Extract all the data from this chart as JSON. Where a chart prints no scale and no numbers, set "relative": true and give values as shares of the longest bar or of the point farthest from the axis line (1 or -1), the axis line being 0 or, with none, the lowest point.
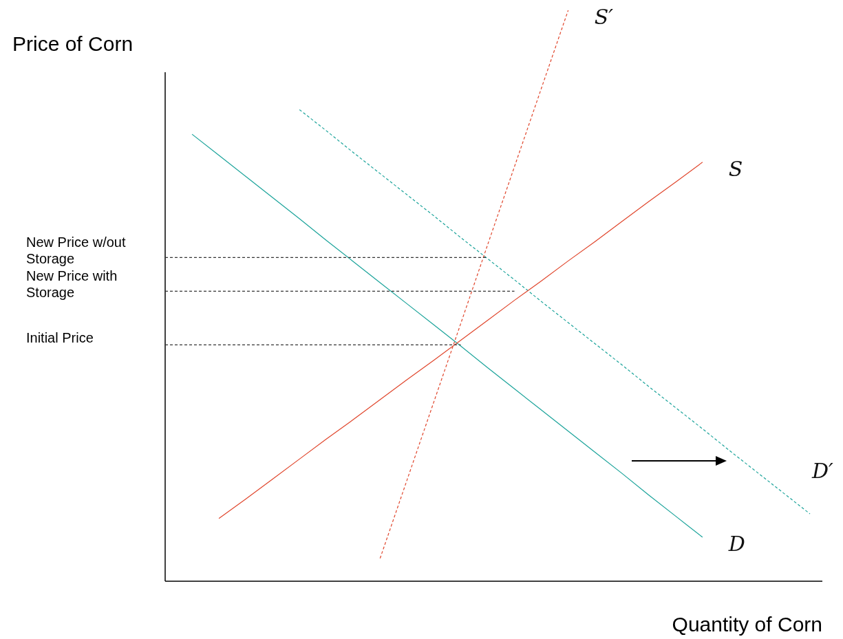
{
  "chart_data": {
    "type": "line",
    "relative": true,
    "xlabel": "Quantity of Corn",
    "ylabel": "Price of Corn",
    "categories": [
      null,
      null,
      null,
      null,
      null,
      null,
      null,
      null,
      null,
      null,
      null,
      null,
      null,
      null,
      null,
      null,
      null,
      null,
      null,
      null,
      null,
      null,
      null,
      null,
      null
    ],
    "series": [
      {
        "name": "D",
        "color": "#1aa39a",
        "line_style": "solid",
        "values": [
          null,
          0.783,
          0.746,
          0.709,
          0.672,
          0.635,
          0.597,
          0.56,
          0.523,
          0.486,
          0.449,
          0.412,
          0.374,
          0.337,
          0.3,
          0.263,
          0.226,
          0.189,
          0.151,
          0.114,
          0.077,
          null,
          null,
          null,
          null
        ]
      },
      {
        "name": "D′",
        "color": "#1aa39a",
        "line_style": "dashed",
        "values": [
          null,
          null,
          null,
          null,
          null,
          0.826,
          0.789,
          0.751,
          0.714,
          0.677,
          0.64,
          0.602,
          0.565,
          0.528,
          0.49,
          0.453,
          0.416,
          0.379,
          0.341,
          0.304,
          0.267,
          0.229,
          0.192,
          0.155,
          0.118
        ]
      },
      {
        "name": "S",
        "color": "#e0452b",
        "line_style": "solid",
        "values": [
          null,
          null,
          0.11,
          0.144,
          0.179,
          0.214,
          0.249,
          0.283,
          0.318,
          0.353,
          0.387,
          0.422,
          0.457,
          0.492,
          0.526,
          0.561,
          0.595,
          0.63,
          0.665,
          0.699,
          0.734,
          null,
          null,
          null,
          null
        ]
      },
      {
        "name": "S′",
        "color": "#e0452b",
        "line_style": "dashed",
        "values": [
          null,
          null,
          null,
          null,
          null,
          null,
          null,
          null,
          0.04,
          0.177,
          0.314,
          0.451,
          0.589,
          0.726,
          0.863,
          1.0,
          null,
          null,
          null,
          null,
          null,
          null,
          null,
          null,
          null
        ]
      },
      {
        "color": "#333333",
        "line_style": "dashed",
        "values": [
          0.567,
          0.567,
          0.567,
          0.567,
          0.567,
          0.567,
          0.567,
          0.567,
          0.567,
          0.567,
          0.567,
          0.567,
          0.567,
          null,
          null,
          null,
          null,
          null,
          null,
          null,
          null,
          null,
          null,
          null,
          null
        ]
      },
      {
        "color": "#333333",
        "line_style": "dashed",
        "values": [
          0.508,
          0.508,
          0.508,
          0.508,
          0.508,
          0.508,
          0.508,
          0.508,
          0.508,
          0.508,
          0.508,
          0.508,
          0.508,
          0.508,
          null,
          null,
          null,
          null,
          null,
          null,
          null,
          null,
          null,
          null,
          null
        ]
      },
      {
        "color": "#333333",
        "line_style": "dashed",
        "values": [
          0.414,
          0.414,
          0.414,
          0.414,
          0.414,
          0.414,
          0.414,
          0.414,
          0.414,
          0.414,
          0.414,
          0.414,
          null,
          null,
          null,
          null,
          null,
          null,
          null,
          null,
          null,
          null,
          null,
          null,
          null
        ]
      }
    ],
    "annotations": [
      "New Price w/out Storage",
      "New Price with Storage",
      "Initial Price"
    ]
  }
}
